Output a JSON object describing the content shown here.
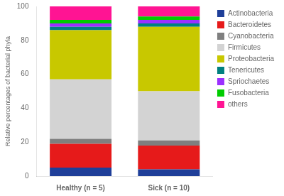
{
  "chart_data": {
    "type": "bar",
    "stacked": true,
    "categories": [
      "Healthy (n = 5)",
      "Sick (n = 10)"
    ],
    "series": [
      {
        "name": "Actinobacteria",
        "color": "#1f3f99",
        "values": [
          5.0,
          4.0
        ]
      },
      {
        "name": "Bacteroidetes",
        "color": "#e61a1a",
        "values": [
          14.0,
          14.0
        ]
      },
      {
        "name": "Cyanobacteria",
        "color": "#7f7f7f",
        "values": [
          3.0,
          3.0
        ]
      },
      {
        "name": "Firmicutes",
        "color": "#d3d3d3",
        "values": [
          35.0,
          29.0
        ]
      },
      {
        "name": "Proteobacteria",
        "color": "#c8c800",
        "values": [
          29.0,
          38.0
        ]
      },
      {
        "name": "Tenericutes",
        "color": "#008080",
        "values": [
          2.0,
          2.0
        ]
      },
      {
        "name": "Spriochaetes",
        "color": "#9b30ff",
        "values": [
          2.0,
          2.0
        ]
      },
      {
        "name": "Fusobacteria",
        "color": "#00cc00",
        "values": [
          2.0,
          2.0
        ]
      },
      {
        "name": "others",
        "color": "#ff1493",
        "values": [
          8.0,
          6.0
        ]
      }
    ],
    "ylabel": "Relative percentages of bacterial phyla",
    "ylim": [
      0,
      100
    ],
    "yticks": [
      0,
      20,
      40,
      60,
      80,
      100
    ],
    "grid": false,
    "legend": "right"
  }
}
